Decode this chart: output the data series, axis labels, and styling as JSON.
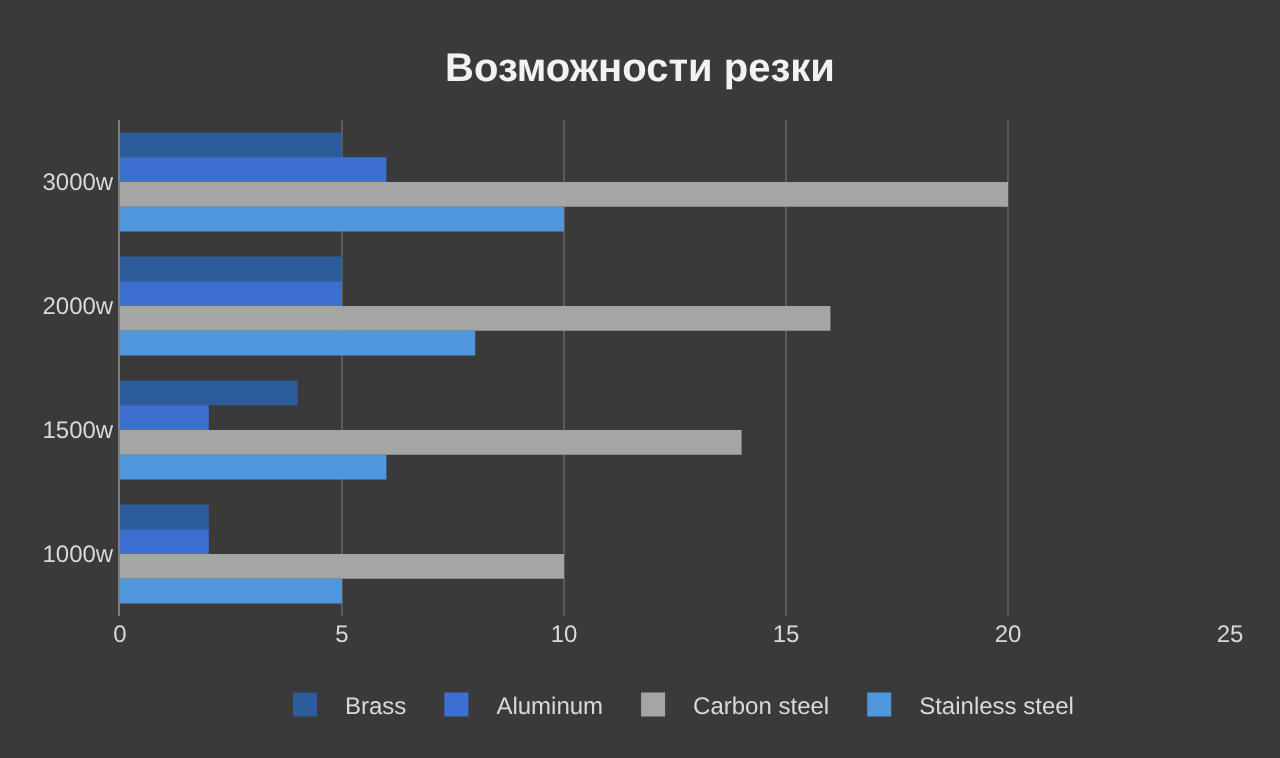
{
  "chart_data": {
    "type": "bar",
    "orientation": "horizontal",
    "title": "Возможности резки",
    "categories": [
      "3000w",
      "2000w",
      "1500w",
      "1000w"
    ],
    "series": [
      {
        "name": "Brass",
        "color": "#2c5d9a",
        "values": [
          5,
          5,
          4,
          2
        ]
      },
      {
        "name": "Aluminum",
        "color": "#3d6fd0",
        "values": [
          6,
          5,
          2,
          2
        ]
      },
      {
        "name": "Carbon steel",
        "color": "#a5a5a5",
        "values": [
          20,
          16,
          14,
          10
        ]
      },
      {
        "name": "Stainless steel",
        "color": "#4f97dc",
        "values": [
          10,
          8,
          6,
          5
        ]
      }
    ],
    "xlim": [
      0,
      25
    ],
    "xticks": [
      0,
      5,
      10,
      15,
      20,
      25
    ],
    "grid": "x",
    "legend": "bottom"
  }
}
